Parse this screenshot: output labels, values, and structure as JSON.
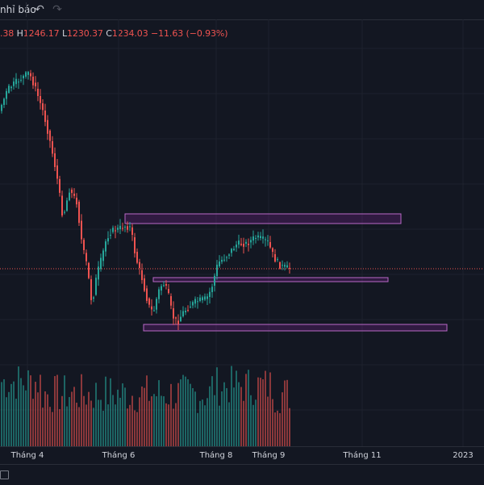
{
  "toolbar": {
    "alert_label": "nhỉ báo",
    "undo_icon": "undo-icon",
    "redo_icon": "redo-icon"
  },
  "ohlc": {
    "open_partial": ".38",
    "high_label": "H",
    "high_value": "1246.17",
    "low_label": "L",
    "low_value": "1230.37",
    "close_label": "C",
    "close_value": "1234.03",
    "change": "−11.63 (−0.93%)"
  },
  "colors": {
    "background": "#131722",
    "up": "#26a69a",
    "down": "#ef5350",
    "zone_fill": "rgba(156,39,176,0.22)",
    "zone_border": "#ba68c8",
    "price_line": "#ef5350"
  },
  "chart_data": {
    "type": "candlestick",
    "x_axis_labels": [
      "Tháng 4",
      "Tháng 6",
      "Tháng 8",
      "Tháng 9",
      "Tháng 11",
      "2023"
    ],
    "last_close": 1234.03,
    "zones": [
      {
        "name": "upper-resistance-zone",
        "x_start": "Tháng 6",
        "x_end": "Tháng 11"
      },
      {
        "name": "middle-support-zone",
        "x_start": "Tháng 6",
        "x_end": "Tháng 11"
      },
      {
        "name": "lower-support-zone",
        "x_start": "Tháng 6",
        "x_end": "2023"
      }
    ]
  }
}
